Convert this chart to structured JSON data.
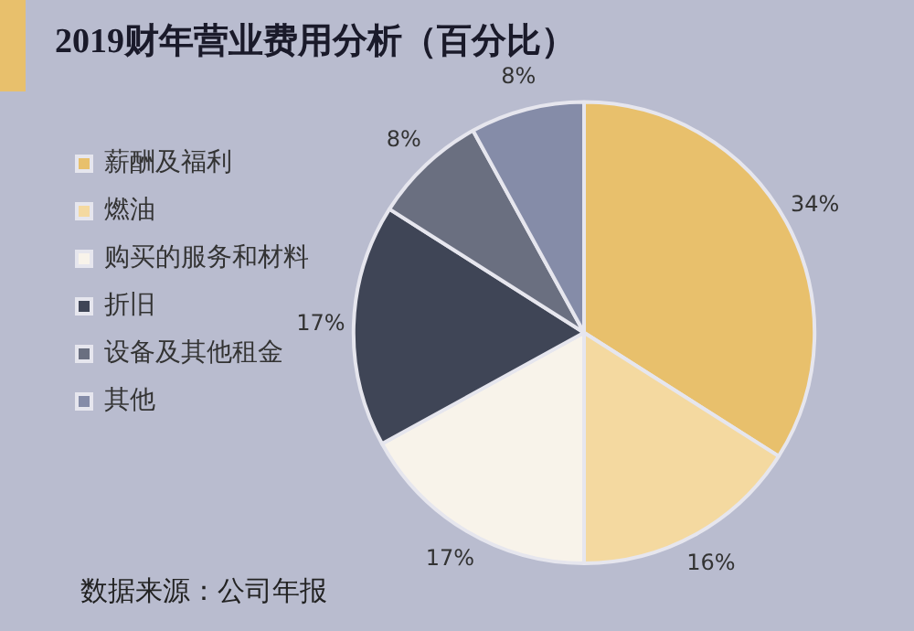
{
  "chart_data": {
    "type": "pie",
    "title": "2019财年营业费用分析（百分比）",
    "categories": [
      "薪酬及福利",
      "燃油",
      "购买的服务和材料",
      "折旧",
      "设备及其他租金",
      "其他"
    ],
    "values": [
      34,
      16,
      17,
      17,
      8,
      8
    ],
    "colors": [
      "#e8c06c",
      "#f4d9a0",
      "#f8f3ea",
      "#3f4556",
      "#6a6f80",
      "#858ca8"
    ],
    "value_labels": [
      "34%",
      "16%",
      "17%",
      "17%",
      "8%",
      "8%"
    ],
    "legend": "left",
    "annotations": [
      "数据来源：公司年报"
    ]
  }
}
